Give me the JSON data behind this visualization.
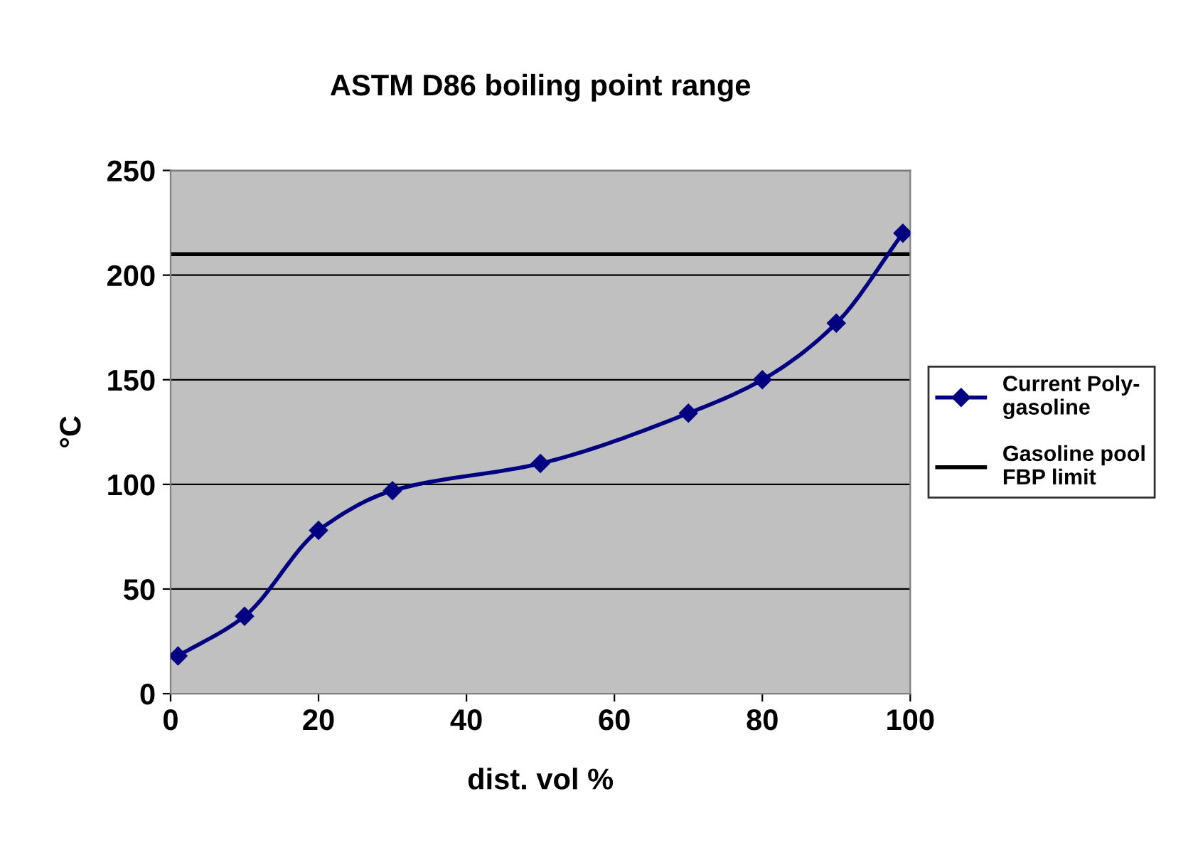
{
  "chart_data": {
    "type": "line",
    "title": "ASTM D86 boiling point range",
    "xlabel": "dist. vol %",
    "ylabel": "°C",
    "x": [
      1,
      10,
      20,
      30,
      50,
      70,
      80,
      90,
      99
    ],
    "series": [
      {
        "name": "Current Poly-\ngasoline",
        "color": "#000080",
        "values": [
          18,
          37,
          78,
          97,
          110,
          134,
          150,
          177,
          220
        ]
      }
    ],
    "ref_lines": [
      {
        "axis": "y",
        "value": 210,
        "label": "Gasoline pool\nFBP limit",
        "color": "#000000",
        "line_style": "solid"
      }
    ],
    "xlim": [
      0,
      100
    ],
    "xticks": [
      0,
      20,
      40,
      60,
      80,
      100
    ],
    "ylim": [
      0,
      250
    ],
    "yticks": [
      0,
      50,
      100,
      150,
      200,
      250
    ],
    "grid": "y",
    "legend": "right",
    "marker": "diamond",
    "line_style": "solid"
  }
}
